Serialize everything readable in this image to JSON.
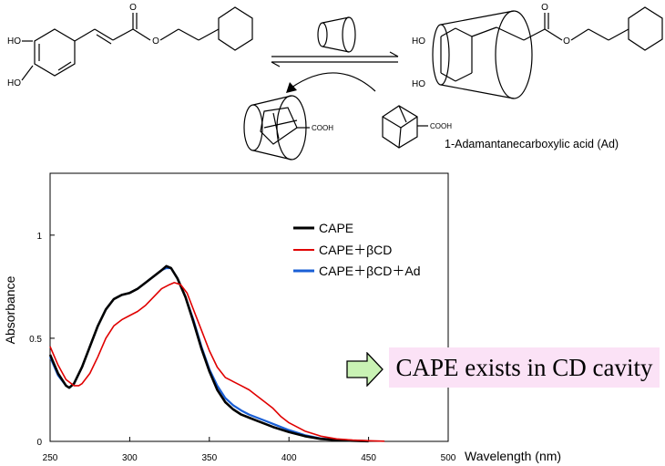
{
  "scheme": {
    "guest_compound_label": "1-Adamantanecarboxylic acid (Ad)",
    "hydroxyl_label": "HO",
    "carboxyl_label": "COOH",
    "arrow_color": "#000000"
  },
  "chart_data": {
    "type": "line",
    "title": "",
    "xlabel": "Wavelength (nm)",
    "ylabel": "Absorbance",
    "xlim": [
      250,
      500
    ],
    "ylim": [
      0,
      1.3
    ],
    "x_ticks": [
      "250",
      "300",
      "350",
      "400",
      "450",
      "500"
    ],
    "y_ticks": [
      "0",
      "0.5",
      "1"
    ],
    "grid": false,
    "legend_position": "upper-right",
    "legend": [
      "CAPE",
      "CAPE＋βCD",
      "CAPE＋βCD＋Ad"
    ],
    "series": [
      {
        "name": "CAPE",
        "color": "#000000",
        "x": [
          250,
          255,
          260,
          262,
          265,
          270,
          275,
          280,
          285,
          290,
          295,
          300,
          305,
          310,
          315,
          320,
          323,
          326,
          330,
          335,
          340,
          345,
          350,
          355,
          360,
          365,
          370,
          375,
          380,
          385,
          390,
          400,
          410,
          420,
          430,
          440,
          450
        ],
        "y": [
          0.42,
          0.33,
          0.27,
          0.26,
          0.28,
          0.36,
          0.46,
          0.56,
          0.64,
          0.69,
          0.71,
          0.72,
          0.74,
          0.77,
          0.8,
          0.83,
          0.85,
          0.84,
          0.79,
          0.7,
          0.58,
          0.45,
          0.34,
          0.25,
          0.19,
          0.155,
          0.13,
          0.115,
          0.1,
          0.085,
          0.07,
          0.045,
          0.025,
          0.012,
          0.006,
          0.003,
          0.001
        ]
      },
      {
        "name": "CAPE＋βCD",
        "color": "#e00000",
        "x": [
          250,
          255,
          260,
          265,
          268,
          270,
          275,
          280,
          285,
          290,
          295,
          300,
          305,
          310,
          315,
          320,
          325,
          328,
          332,
          336,
          340,
          345,
          350,
          355,
          360,
          365,
          370,
          375,
          380,
          385,
          390,
          395,
          400,
          410,
          420,
          430,
          440,
          450,
          460
        ],
        "y": [
          0.46,
          0.37,
          0.3,
          0.27,
          0.27,
          0.28,
          0.33,
          0.41,
          0.5,
          0.56,
          0.59,
          0.61,
          0.63,
          0.66,
          0.7,
          0.74,
          0.76,
          0.77,
          0.76,
          0.72,
          0.64,
          0.54,
          0.44,
          0.36,
          0.31,
          0.29,
          0.27,
          0.25,
          0.22,
          0.19,
          0.16,
          0.12,
          0.09,
          0.05,
          0.025,
          0.012,
          0.006,
          0.003,
          0.001
        ]
      },
      {
        "name": "CAPE＋βCD＋Ad",
        "color": "#1a5fd6",
        "x": [
          250,
          255,
          260,
          262,
          265,
          270,
          275,
          280,
          285,
          290,
          295,
          300,
          305,
          310,
          315,
          320,
          323,
          326,
          330,
          335,
          340,
          345,
          350,
          355,
          360,
          365,
          370,
          375,
          380,
          385,
          390,
          400,
          410,
          420,
          430,
          440,
          450
        ],
        "y": [
          0.41,
          0.32,
          0.27,
          0.26,
          0.28,
          0.36,
          0.46,
          0.56,
          0.64,
          0.69,
          0.71,
          0.72,
          0.74,
          0.77,
          0.8,
          0.83,
          0.84,
          0.84,
          0.79,
          0.7,
          0.59,
          0.46,
          0.35,
          0.27,
          0.21,
          0.175,
          0.15,
          0.13,
          0.115,
          0.1,
          0.085,
          0.055,
          0.03,
          0.014,
          0.007,
          0.003,
          0.001
        ]
      }
    ]
  },
  "conclusion": {
    "text": "CAPE exists in CD cavity",
    "box_color": "#fbe2f6",
    "arrow_color": "#c9f2b4"
  }
}
